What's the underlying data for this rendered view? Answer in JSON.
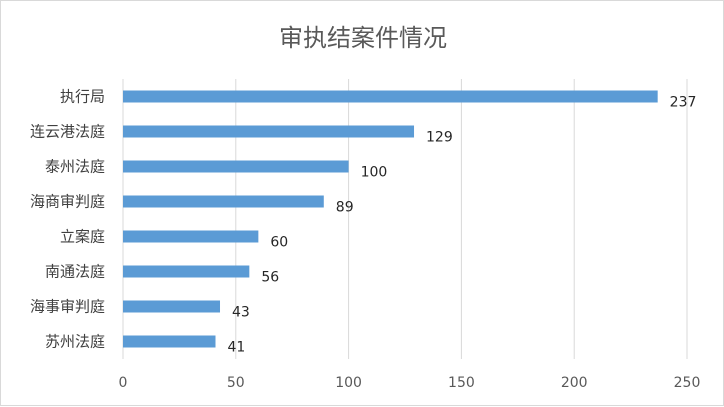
{
  "chart_data": {
    "type": "bar",
    "orientation": "horizontal",
    "title": "审执结案件情况",
    "xlabel": "",
    "ylabel": "",
    "categories": [
      "执行局",
      "连云港法庭",
      "泰州法庭",
      "海商审判庭",
      "立案庭",
      "南通法庭",
      "海事审判庭",
      "苏州法庭"
    ],
    "values": [
      237,
      129,
      100,
      89,
      60,
      56,
      43,
      41
    ],
    "xlim": [
      0,
      250
    ],
    "ticks": [
      0,
      50,
      100,
      150,
      200,
      250
    ],
    "tick_labels": [
      "0",
      "50",
      "100",
      "150",
      "200",
      "250"
    ],
    "grid": "vertical",
    "legend": "none",
    "data_labels": true,
    "colors": {
      "bar": "#5b9bd5",
      "grid": "#d9d9d9",
      "title": "#595959",
      "text": "#404040"
    }
  }
}
